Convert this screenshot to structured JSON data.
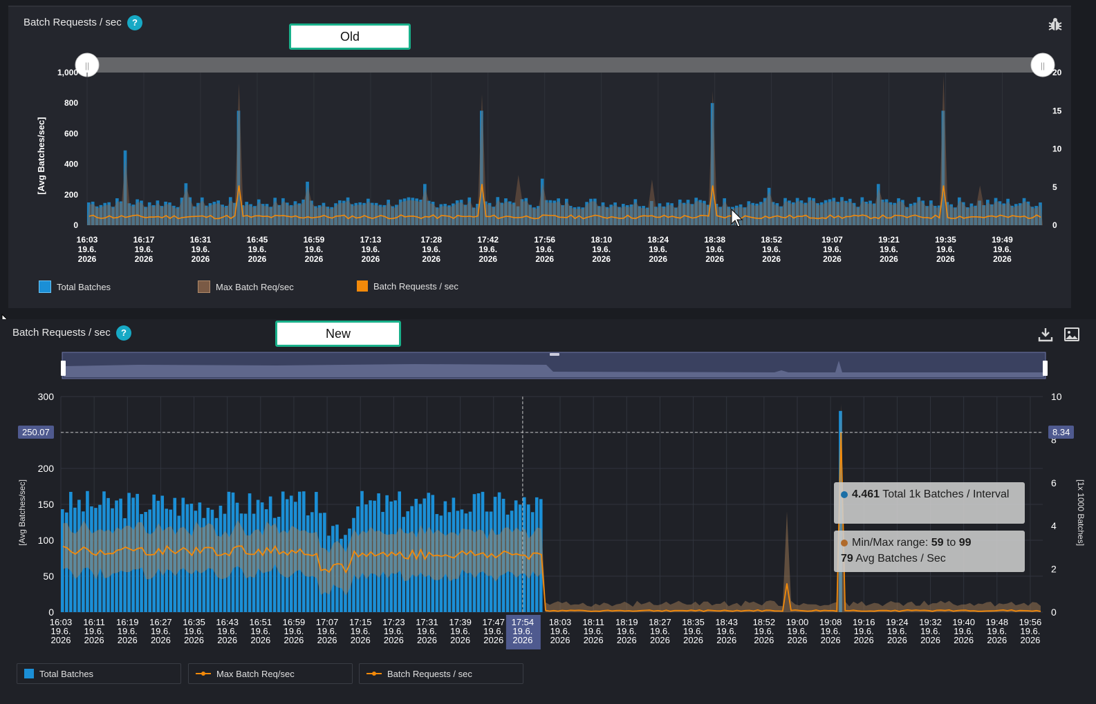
{
  "colors": {
    "total_batches": "#1b8fd6",
    "max_batch": "#8d6749",
    "batch_requests": "#f38a0a",
    "accent": "#17a9c5",
    "highlight": "#4f5a8f"
  },
  "old_panel": {
    "title": "Batch Requests / sec",
    "help": "?",
    "label": "Old",
    "icon": "bug-icon",
    "y_axis_label": "[Avg Batches/sec]",
    "legend": [
      "Total Batches",
      "Max Batch Req/sec",
      "Batch Requests / sec"
    ]
  },
  "new_panel": {
    "title": "Batch Requests / sec",
    "help": "?",
    "label": "New",
    "icons": [
      "download-icon",
      "image-icon"
    ],
    "y_axis_label": "[Avg Batches/sec]",
    "y2_axis_label": "[1x 1000 Batches]",
    "crosshair_left_value": "250.07",
    "crosshair_right_value": "8.34",
    "highlight_tick": "17:54",
    "legend": [
      "Total Batches",
      "Max Batch Req/sec",
      "Batch Requests / sec"
    ],
    "tooltip": {
      "value": "4.461",
      "series_text": "Total 1k Batches / Interval",
      "range_prefix": "Min/Max range:",
      "range_min": "59",
      "range_to": "to",
      "range_max": "99",
      "avg_value": "79",
      "avg_text": "Avg Batches / Sec"
    }
  },
  "chart_data": [
    {
      "type": "bar",
      "panel": "Old",
      "title": "Batch Requests / sec",
      "ylabel": "[Avg Batches/sec]",
      "ylim": [
        0,
        1000
      ],
      "y_ticks": [
        "1,000",
        "800",
        "600",
        "400",
        "200",
        "0"
      ],
      "y2lim": [
        0,
        20
      ],
      "y2_ticks": [
        "20",
        "15",
        "10",
        "5",
        "0"
      ],
      "x_ticks": [
        "16:03",
        "16:17",
        "16:31",
        "16:45",
        "16:59",
        "17:13",
        "17:28",
        "17:42",
        "17:56",
        "18:10",
        "18:24",
        "18:38",
        "18:52",
        "19:07",
        "19:21",
        "19:35",
        "19:49"
      ],
      "x_tick_date": "19.6.",
      "x_tick_year": "2026",
      "series": [
        {
          "name": "Total Batches",
          "baseline": 150,
          "spikes": [
            [
              "16:12",
              490
            ],
            [
              "16:27",
              275
            ],
            [
              "16:40",
              750
            ],
            [
              "16:57",
              285
            ],
            [
              "17:26",
              270
            ],
            [
              "17:40",
              750
            ],
            [
              "17:55",
              305
            ],
            [
              "18:37",
              800
            ],
            [
              "18:51",
              245
            ],
            [
              "19:18",
              270
            ],
            [
              "19:34",
              750
            ]
          ]
        },
        {
          "name": "Max Batch Req/sec",
          "spikes": [
            [
              "16:40",
              930
            ],
            [
              "17:40",
              860
            ],
            [
              "17:49",
              330
            ],
            [
              "18:22",
              300
            ],
            [
              "18:37",
              880
            ],
            [
              "19:34",
              980
            ],
            [
              "19:43",
              260
            ]
          ]
        },
        {
          "name": "Batch Requests / sec",
          "baseline": 55,
          "spikes": [
            [
              "16:40",
              260
            ],
            [
              "17:40",
              270
            ],
            [
              "18:37",
              260
            ],
            [
              "19:34",
              260
            ]
          ]
        }
      ],
      "grid": true,
      "legend_position": "bottom-left"
    },
    {
      "type": "bar",
      "panel": "New",
      "title": "Batch Requests / sec",
      "ylabel": "[Avg Batches/sec]",
      "ylim": [
        0,
        300
      ],
      "y_ticks": [
        "300",
        "250",
        "200",
        "150",
        "100",
        "50",
        "0"
      ],
      "y2label": "[1x 1000 Batches]",
      "y2lim": [
        0,
        10
      ],
      "y2_ticks": [
        "10",
        "8",
        "6",
        "4",
        "2",
        "0"
      ],
      "x_ticks": [
        "16:03",
        "16:11",
        "16:19",
        "16:27",
        "16:35",
        "16:43",
        "16:51",
        "16:59",
        "17:07",
        "17:15",
        "17:23",
        "17:31",
        "17:39",
        "17:47",
        "17:54",
        "18:03",
        "18:11",
        "18:19",
        "18:27",
        "18:35",
        "18:43",
        "18:52",
        "19:00",
        "19:08",
        "19:16",
        "19:24",
        "19:32",
        "19:40",
        "19:48",
        "19:56"
      ],
      "x_tick_date": "19.6.",
      "x_tick_year": "2026",
      "series": [
        {
          "name": "Total Batches",
          "phases": [
            [
              "16:03",
              "17:05",
              150
            ],
            [
              "17:05",
              "17:13",
              120
            ],
            [
              "17:13",
              "17:59",
              150
            ],
            [
              "17:59",
              "19:59",
              0
            ]
          ],
          "spikes": [
            [
              "19:10",
              280
            ]
          ]
        },
        {
          "name": "Max Batch Req/sec",
          "range_before_18:00": [
            60,
            110
          ],
          "spikes": [
            [
              "18:57",
              140
            ],
            [
              "19:10",
              290
            ]
          ]
        },
        {
          "name": "Batch Requests / sec",
          "phases": [
            [
              "16:03",
              "17:05",
              85
            ],
            [
              "17:05",
              "17:13",
              62
            ],
            [
              "17:13",
              "17:59",
              80
            ],
            [
              "17:59",
              "19:59",
              2
            ]
          ],
          "spikes": [
            [
              "18:57",
              40
            ],
            [
              "19:10",
              250
            ]
          ]
        }
      ],
      "crosshair": {
        "x": "17:54",
        "y_left": 250.07,
        "y_right": 8.34
      },
      "grid": true,
      "legend_position": "bottom-left"
    }
  ]
}
